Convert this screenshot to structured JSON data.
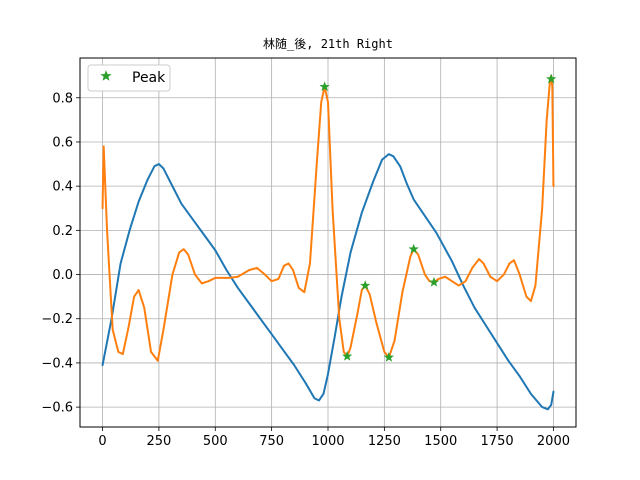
{
  "chart_data": {
    "type": "line",
    "title": "林随_後, 21th Right",
    "xlabel": "",
    "ylabel": "",
    "xlim": [
      -100,
      2100
    ],
    "ylim": [
      -0.69,
      0.98
    ],
    "xticks": [
      0,
      250,
      500,
      750,
      1000,
      1250,
      1500,
      1750,
      2000
    ],
    "yticks": [
      -0.6,
      -0.4,
      -0.2,
      0.0,
      0.2,
      0.4,
      0.6,
      0.8
    ],
    "grid": true,
    "legend": {
      "position": "top-left",
      "entries": [
        "Peak"
      ]
    },
    "series": [
      {
        "color": "#1f77b4",
        "style": "line",
        "points": [
          [
            0,
            -0.41
          ],
          [
            40,
            -0.2
          ],
          [
            80,
            0.05
          ],
          [
            120,
            0.2
          ],
          [
            160,
            0.33
          ],
          [
            200,
            0.43
          ],
          [
            230,
            0.49
          ],
          [
            250,
            0.5
          ],
          [
            270,
            0.48
          ],
          [
            300,
            0.42
          ],
          [
            350,
            0.32
          ],
          [
            400,
            0.25
          ],
          [
            450,
            0.18
          ],
          [
            500,
            0.11
          ],
          [
            550,
            0.02
          ],
          [
            600,
            -0.06
          ],
          [
            650,
            -0.13
          ],
          [
            700,
            -0.2
          ],
          [
            750,
            -0.27
          ],
          [
            800,
            -0.34
          ],
          [
            850,
            -0.41
          ],
          [
            900,
            -0.49
          ],
          [
            940,
            -0.56
          ],
          [
            960,
            -0.57
          ],
          [
            980,
            -0.54
          ],
          [
            1000,
            -0.45
          ],
          [
            1030,
            -0.28
          ],
          [
            1060,
            -0.1
          ],
          [
            1100,
            0.1
          ],
          [
            1150,
            0.28
          ],
          [
            1200,
            0.42
          ],
          [
            1240,
            0.52
          ],
          [
            1270,
            0.545
          ],
          [
            1290,
            0.535
          ],
          [
            1320,
            0.49
          ],
          [
            1350,
            0.41
          ],
          [
            1380,
            0.34
          ],
          [
            1420,
            0.28
          ],
          [
            1480,
            0.19
          ],
          [
            1550,
            0.06
          ],
          [
            1600,
            -0.05
          ],
          [
            1650,
            -0.15
          ],
          [
            1700,
            -0.23
          ],
          [
            1750,
            -0.31
          ],
          [
            1800,
            -0.39
          ],
          [
            1850,
            -0.46
          ],
          [
            1900,
            -0.54
          ],
          [
            1950,
            -0.6
          ],
          [
            1975,
            -0.61
          ],
          [
            1990,
            -0.59
          ],
          [
            2000,
            -0.53
          ]
        ]
      },
      {
        "color": "#ff7f0e",
        "style": "line",
        "points": [
          [
            0,
            0.3
          ],
          [
            5,
            0.58
          ],
          [
            20,
            0.2
          ],
          [
            45,
            -0.25
          ],
          [
            70,
            -0.35
          ],
          [
            90,
            -0.36
          ],
          [
            115,
            -0.24
          ],
          [
            140,
            -0.1
          ],
          [
            160,
            -0.07
          ],
          [
            185,
            -0.15
          ],
          [
            215,
            -0.35
          ],
          [
            245,
            -0.39
          ],
          [
            270,
            -0.25
          ],
          [
            310,
            0.0
          ],
          [
            340,
            0.1
          ],
          [
            360,
            0.115
          ],
          [
            380,
            0.09
          ],
          [
            410,
            0.0
          ],
          [
            440,
            -0.04
          ],
          [
            470,
            -0.03
          ],
          [
            500,
            -0.015
          ],
          [
            560,
            -0.015
          ],
          [
            600,
            -0.01
          ],
          [
            650,
            0.02
          ],
          [
            685,
            0.03
          ],
          [
            720,
            0.0
          ],
          [
            750,
            -0.03
          ],
          [
            780,
            -0.02
          ],
          [
            805,
            0.04
          ],
          [
            825,
            0.05
          ],
          [
            845,
            0.02
          ],
          [
            870,
            -0.06
          ],
          [
            895,
            -0.08
          ],
          [
            920,
            0.05
          ],
          [
            950,
            0.5
          ],
          [
            970,
            0.78
          ],
          [
            985,
            0.85
          ],
          [
            1000,
            0.78
          ],
          [
            1020,
            0.3
          ],
          [
            1050,
            -0.2
          ],
          [
            1070,
            -0.35
          ],
          [
            1085,
            -0.37
          ],
          [
            1100,
            -0.33
          ],
          [
            1130,
            -0.18
          ],
          [
            1150,
            -0.07
          ],
          [
            1165,
            -0.05
          ],
          [
            1185,
            -0.09
          ],
          [
            1215,
            -0.22
          ],
          [
            1250,
            -0.35
          ],
          [
            1270,
            -0.375
          ],
          [
            1295,
            -0.3
          ],
          [
            1330,
            -0.08
          ],
          [
            1365,
            0.08
          ],
          [
            1380,
            0.115
          ],
          [
            1400,
            0.09
          ],
          [
            1430,
            0.0
          ],
          [
            1450,
            -0.03
          ],
          [
            1470,
            -0.035
          ],
          [
            1490,
            -0.02
          ],
          [
            1520,
            -0.01
          ],
          [
            1550,
            -0.03
          ],
          [
            1580,
            -0.05
          ],
          [
            1610,
            -0.03
          ],
          [
            1640,
            0.03
          ],
          [
            1670,
            0.07
          ],
          [
            1690,
            0.05
          ],
          [
            1720,
            -0.01
          ],
          [
            1750,
            -0.03
          ],
          [
            1780,
            0.0
          ],
          [
            1805,
            0.05
          ],
          [
            1825,
            0.065
          ],
          [
            1850,
            0.0
          ],
          [
            1880,
            -0.1
          ],
          [
            1900,
            -0.12
          ],
          [
            1920,
            -0.05
          ],
          [
            1950,
            0.3
          ],
          [
            1970,
            0.7
          ],
          [
            1985,
            0.88
          ],
          [
            1990,
            0.9
          ],
          [
            1995,
            0.85
          ],
          [
            2000,
            0.4
          ]
        ]
      },
      {
        "name": "Peak",
        "color": "#2ca02c",
        "style": "markers",
        "marker": "star",
        "points": [
          [
            985,
            0.85
          ],
          [
            1085,
            -0.37
          ],
          [
            1165,
            -0.05
          ],
          [
            1270,
            -0.375
          ],
          [
            1380,
            0.115
          ],
          [
            1470,
            -0.035
          ],
          [
            1990,
            0.885
          ]
        ]
      }
    ]
  }
}
